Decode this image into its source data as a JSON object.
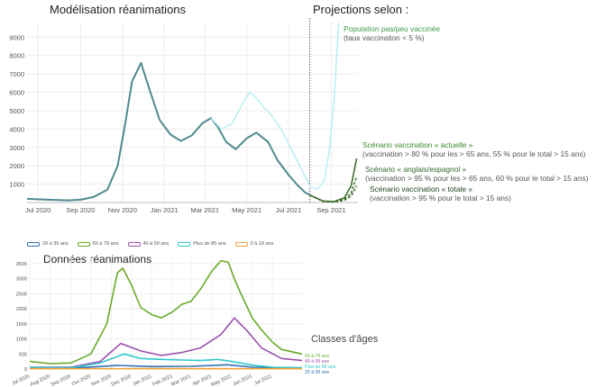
{
  "chart_data": [
    {
      "type": "line",
      "title": "Modélisation réanimations",
      "right_title": "Projections selon :",
      "x_ticks": [
        "Jul 2020",
        "Sep 2020",
        "Nov 2020",
        "Jan 2021",
        "Mar 2021",
        "May 2021",
        "Jul 2021",
        "Sep 2021"
      ],
      "y_ticks": [
        1000,
        2000,
        3000,
        4000,
        5000,
        6000,
        7000,
        8000,
        9000
      ],
      "ylim": [
        0,
        9800
      ],
      "xlim": [
        "2020-06-15",
        "2021-10-10"
      ],
      "grid": true,
      "projection_start": "2021-08-01",
      "series": [
        {
          "color": "#4e8a8e",
          "x": [
            "2020-06-15",
            "2020-07-15",
            "2020-08-15",
            "2020-09-01",
            "2020-09-20",
            "2020-10-10",
            "2020-10-25",
            "2020-11-05",
            "2020-11-15",
            "2020-11-28",
            "2020-12-10",
            "2020-12-25",
            "2021-01-10",
            "2021-01-25",
            "2021-02-10",
            "2021-02-25",
            "2021-03-10",
            "2021-03-20",
            "2021-04-01",
            "2021-04-15",
            "2021-05-01",
            "2021-05-15",
            "2021-06-01",
            "2021-06-15",
            "2021-07-01",
            "2021-07-15",
            "2021-07-25",
            "2021-08-01"
          ],
          "y": [
            200,
            150,
            120,
            150,
            300,
            700,
            2000,
            4300,
            6600,
            7600,
            6200,
            4500,
            3700,
            3350,
            3650,
            4300,
            4600,
            4100,
            3300,
            2900,
            3500,
            3800,
            3300,
            2300,
            1500,
            900,
            550,
            400
          ]
        },
        {
          "color": "#bdeff1",
          "x": [
            "2021-03-10",
            "2021-03-25",
            "2021-04-10",
            "2021-04-25",
            "2021-05-05",
            "2021-05-15",
            "2021-05-25",
            "2021-06-05",
            "2021-06-20",
            "2021-07-05",
            "2021-07-20",
            "2021-08-01",
            "2021-08-12",
            "2021-08-22",
            "2021-08-30",
            "2021-09-06",
            "2021-09-12"
          ],
          "y": [
            4600,
            4000,
            4300,
            5400,
            6000,
            5700,
            5200,
            4800,
            4000,
            2900,
            1800,
            900,
            700,
            1200,
            3000,
            6000,
            9800
          ]
        },
        {
          "color": "#3f6f30",
          "x": [
            "2021-08-01",
            "2021-08-20",
            "2021-09-05",
            "2021-09-20",
            "2021-09-30",
            "2021-10-08"
          ],
          "y": [
            400,
            80,
            50,
            250,
            900,
            2400
          ]
        },
        {
          "color": "#3f6f30",
          "dashed": true,
          "x": [
            "2021-08-01",
            "2021-08-20",
            "2021-09-05",
            "2021-09-20",
            "2021-09-30",
            "2021-10-08"
          ],
          "y": [
            400,
            70,
            40,
            180,
            500,
            1400
          ]
        },
        {
          "color": "#3f6f30",
          "dashed": true,
          "x": [
            "2021-08-01",
            "2021-08-20",
            "2021-09-05",
            "2021-09-20",
            "2021-09-30",
            "2021-10-08"
          ],
          "y": [
            400,
            60,
            30,
            120,
            350,
            900
          ]
        }
      ]
    },
    {
      "type": "line",
      "title": "Données réanimations",
      "y_ticks": [
        0,
        500,
        1000,
        1500,
        2000,
        2500,
        3000,
        3500
      ],
      "ylim": [
        0,
        3800
      ],
      "xlim": [
        "2020-07-01",
        "2021-08-15"
      ],
      "x_ticks": [
        "Jul 2020",
        "Aug 2020",
        "Sep 2020",
        "Oct 2020",
        "Nov 2020",
        "Dec 2020",
        "Jan 2021",
        "Feb 2021",
        "Mar 2021",
        "Apr 2021",
        "May 2021",
        "Jun 2021",
        "Jul 2021"
      ],
      "legend": [
        "20 à 39 ans",
        "60 à 79 ans",
        "40 à 59 ans",
        "Plus de 80 ans",
        "0 à 19 ans"
      ],
      "legend_position": "top",
      "side_label": "Classes d'âges",
      "end_labels": [
        "60 à 79 ans",
        "40 à 59 ans",
        "Plus de 80 ans",
        "20 à 39 ans"
      ],
      "series": [
        {
          "name": "20 à 39 ans",
          "color": "#2f6fb5",
          "x": [
            "2020-07-01",
            "2020-09-01",
            "2020-11-10",
            "2021-01-01",
            "2021-03-01",
            "2021-04-25",
            "2021-06-01",
            "2021-08-15"
          ],
          "y": [
            20,
            25,
            120,
            80,
            90,
            140,
            60,
            40
          ]
        },
        {
          "name": "60 à 79 ans",
          "color": "#6aaa2a",
          "x": [
            "2020-07-01",
            "2020-08-01",
            "2020-09-01",
            "2020-10-01",
            "2020-10-25",
            "2020-11-10",
            "2020-11-18",
            "2020-12-01",
            "2020-12-15",
            "2021-01-01",
            "2021-01-15",
            "2021-02-01",
            "2021-02-15",
            "2021-03-01",
            "2021-03-15",
            "2021-04-01",
            "2021-04-15",
            "2021-04-26",
            "2021-05-05",
            "2021-05-15",
            "2021-06-01",
            "2021-06-15",
            "2021-07-01",
            "2021-07-15",
            "2021-08-15"
          ],
          "y": [
            250,
            180,
            200,
            500,
            1500,
            3200,
            3350,
            2800,
            2050,
            1800,
            1700,
            1900,
            2150,
            2250,
            2650,
            3250,
            3600,
            3550,
            3000,
            2500,
            1700,
            1300,
            900,
            650,
            500
          ]
        },
        {
          "name": "40 à 59 ans",
          "color": "#9b4fb0",
          "x": [
            "2020-07-01",
            "2020-09-01",
            "2020-10-15",
            "2020-11-15",
            "2020-12-15",
            "2021-01-15",
            "2021-02-15",
            "2021-03-15",
            "2021-04-15",
            "2021-05-05",
            "2021-05-25",
            "2021-06-15",
            "2021-07-15",
            "2021-08-15"
          ],
          "y": [
            60,
            60,
            250,
            850,
            600,
            450,
            550,
            700,
            1150,
            1700,
            1250,
            700,
            350,
            280
          ]
        },
        {
          "name": "Plus de 80 ans",
          "color": "#2fc8c8",
          "x": [
            "2020-07-01",
            "2020-09-01",
            "2020-10-15",
            "2020-11-20",
            "2020-12-15",
            "2021-01-15",
            "2021-02-15",
            "2021-03-15",
            "2021-04-10",
            "2021-05-01",
            "2021-06-01",
            "2021-07-01",
            "2021-08-15"
          ],
          "y": [
            50,
            40,
            200,
            500,
            350,
            320,
            300,
            280,
            320,
            250,
            130,
            60,
            40
          ]
        },
        {
          "name": "0 à 19 ans",
          "color": "#f0a23a",
          "x": [
            "2020-07-01",
            "2021-01-01",
            "2021-08-15"
          ],
          "y": [
            8,
            12,
            10
          ]
        }
      ]
    }
  ],
  "annotations": [
    {
      "head": "Population pas/peu vaccinée",
      "sub": "(taux vaccination < 5 %)",
      "color": "#3f9c4a"
    },
    {
      "head": "Scénario vaccination « actuelle »",
      "sub": "(vaccination > 80 % pour les > 65 ans, 55 % pour le total > 15 ans)",
      "color": "#3c8a2a"
    },
    {
      "head": "Scénario « anglais/espagnol »",
      "sub": "(vaccination > 95 % pour les > 65 ans, 60 % pour le total > 15 ans)",
      "color": "#2f6a2a"
    },
    {
      "head": "Scénario vaccination « totale »",
      "sub": "(vaccination > 95 % pour le total > 15 ans)",
      "color": "#1f3d1f"
    }
  ]
}
